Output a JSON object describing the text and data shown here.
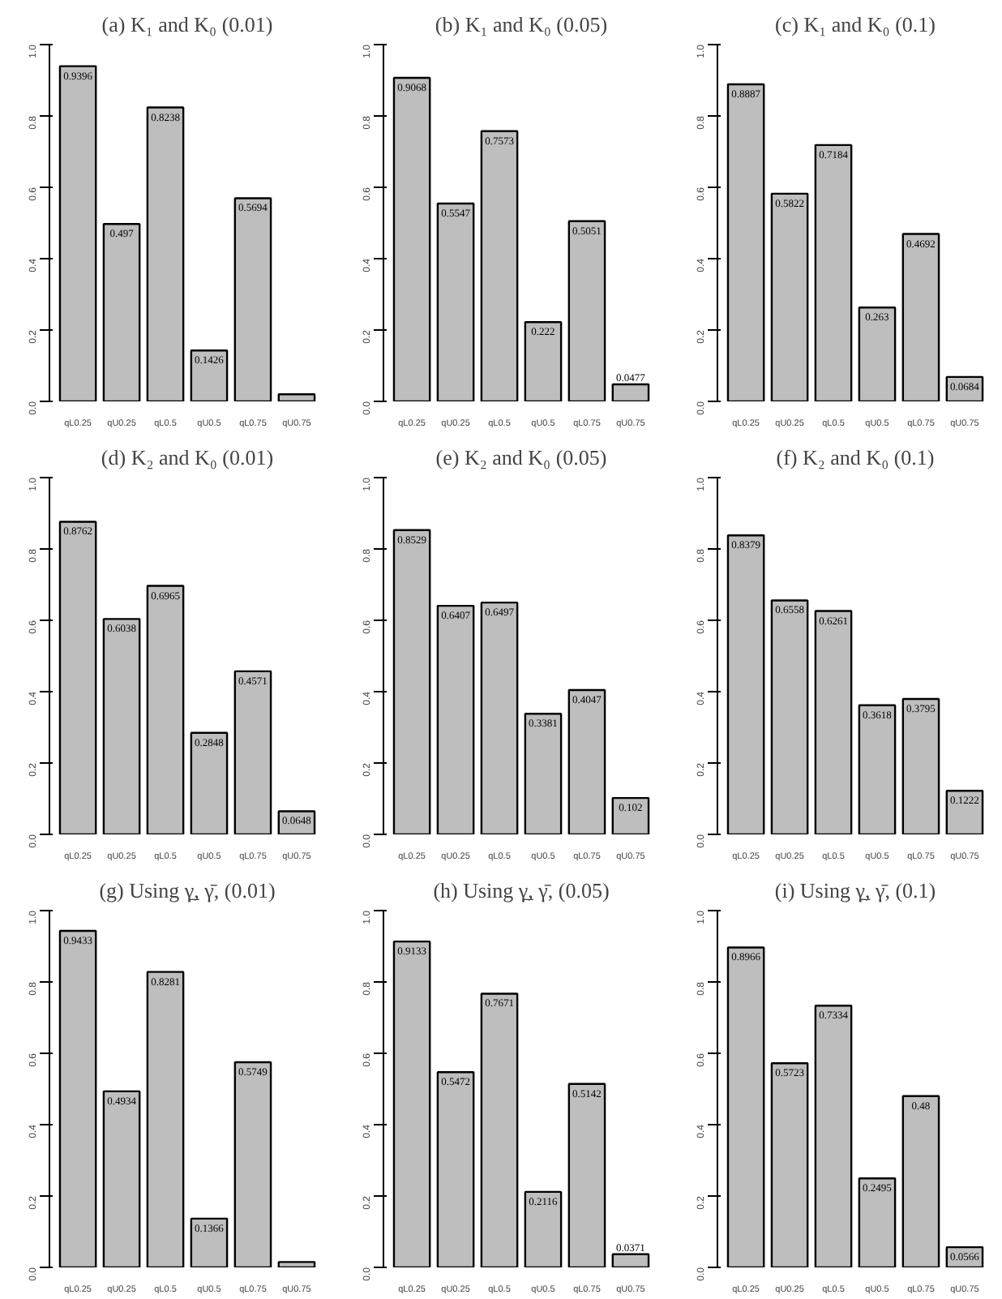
{
  "chart_data": [
    {
      "type": "bar",
      "title": "(a) K₁ and K₀ (0.01)",
      "categories": [
        "qL0.25",
        "qU0.25",
        "qL0.5",
        "qU0.5",
        "qL0.75",
        "qU0.75"
      ],
      "values": [
        0.9396,
        0.497,
        0.8238,
        0.1426,
        0.5694,
        0.02
      ],
      "value_labels": [
        "0.9396",
        "0.497",
        "0.8238",
        "0.1426",
        "0.5694",
        null
      ],
      "color": "#bebebe",
      "ylim": [
        0,
        1
      ],
      "yticks": [
        {
          "value": 0,
          "label": "0.0"
        },
        {
          "value": 0.2,
          "label": "0.2"
        },
        {
          "value": 0.4,
          "label": "0.4"
        },
        {
          "value": 0.6,
          "label": "0.6"
        },
        {
          "value": 0.8,
          "label": "0.8"
        },
        {
          "value": 1,
          "label": "1.0"
        }
      ]
    },
    {
      "type": "bar",
      "title": "(b) K₁ and K₀ (0.05)",
      "categories": [
        "qL0.25",
        "qU0.25",
        "qL0.5",
        "qU0.5",
        "qL0.75",
        "qU0.75"
      ],
      "values": [
        0.9068,
        0.5547,
        0.7573,
        0.222,
        0.5051,
        0.0477
      ],
      "value_labels": [
        "0.9068",
        "0.5547",
        "0.7573",
        "0.222",
        "0.5051",
        "0.0477"
      ],
      "color": "#bebebe",
      "ylim": [
        0,
        1
      ],
      "yticks": [
        {
          "value": 0,
          "label": "0.0"
        },
        {
          "value": 0.2,
          "label": "0.2"
        },
        {
          "value": 0.4,
          "label": "0.4"
        },
        {
          "value": 0.6,
          "label": "0.6"
        },
        {
          "value": 0.8,
          "label": "0.8"
        },
        {
          "value": 1,
          "label": "1.0"
        }
      ]
    },
    {
      "type": "bar",
      "title": "(c) K₁ and K₀ (0.1)",
      "categories": [
        "qL0.25",
        "qU0.25",
        "qL0.5",
        "qU0.5",
        "qL0.75",
        "qU0.75"
      ],
      "values": [
        0.8887,
        0.5822,
        0.7184,
        0.263,
        0.4692,
        0.0684
      ],
      "value_labels": [
        "0.8887",
        "0.5822",
        "0.7184",
        "0.263",
        "0.4692",
        "0.0684"
      ],
      "color": "#bebebe",
      "ylim": [
        0,
        1
      ],
      "yticks": [
        {
          "value": 0,
          "label": "0.0"
        },
        {
          "value": 0.2,
          "label": "0.2"
        },
        {
          "value": 0.4,
          "label": "0.4"
        },
        {
          "value": 0.6,
          "label": "0.6"
        },
        {
          "value": 0.8,
          "label": "0.8"
        },
        {
          "value": 1,
          "label": "1.0"
        }
      ]
    },
    {
      "type": "bar",
      "title": "(d) K₂ and K₀ (0.01)",
      "categories": [
        "qL0.25",
        "qU0.25",
        "qL0.5",
        "qU0.5",
        "qL0.75",
        "qU0.75"
      ],
      "values": [
        0.8762,
        0.6038,
        0.6965,
        0.2848,
        0.4571,
        0.0648
      ],
      "value_labels": [
        "0.8762",
        "0.6038",
        "0.6965",
        "0.2848",
        "0.4571",
        "0.0648"
      ],
      "color": "#bebebe",
      "ylim": [
        0,
        1
      ],
      "yticks": [
        {
          "value": 0,
          "label": "0.0"
        },
        {
          "value": 0.2,
          "label": "0.2"
        },
        {
          "value": 0.4,
          "label": "0.4"
        },
        {
          "value": 0.6,
          "label": "0.6"
        },
        {
          "value": 0.8,
          "label": "0.8"
        },
        {
          "value": 1,
          "label": "1.0"
        }
      ]
    },
    {
      "type": "bar",
      "title": "(e) K₂ and K₀ (0.05)",
      "categories": [
        "qL0.25",
        "qU0.25",
        "qL0.5",
        "qU0.5",
        "qL0.75",
        "qU0.75"
      ],
      "values": [
        0.8529,
        0.6407,
        0.6497,
        0.3381,
        0.4047,
        0.102
      ],
      "value_labels": [
        "0.8529",
        "0.6407",
        "0.6497",
        "0.3381",
        "0.4047",
        "0.102"
      ],
      "color": "#bebebe",
      "ylim": [
        0,
        1
      ],
      "yticks": [
        {
          "value": 0,
          "label": "0.0"
        },
        {
          "value": 0.2,
          "label": "0.2"
        },
        {
          "value": 0.4,
          "label": "0.4"
        },
        {
          "value": 0.6,
          "label": "0.6"
        },
        {
          "value": 0.8,
          "label": "0.8"
        },
        {
          "value": 1,
          "label": "1.0"
        }
      ]
    },
    {
      "type": "bar",
      "title": "(f) K₂ and K₀ (0.1)",
      "categories": [
        "qL0.25",
        "qU0.25",
        "qL0.5",
        "qU0.5",
        "qL0.75",
        "qU0.75"
      ],
      "values": [
        0.8379,
        0.6558,
        0.6261,
        0.3618,
        0.3795,
        0.1222
      ],
      "value_labels": [
        "0.8379",
        "0.6558",
        "0.6261",
        "0.3618",
        "0.3795",
        "0.1222"
      ],
      "color": "#bebebe",
      "ylim": [
        0,
        1
      ],
      "yticks": [
        {
          "value": 0,
          "label": "0.0"
        },
        {
          "value": 0.2,
          "label": "0.2"
        },
        {
          "value": 0.4,
          "label": "0.4"
        },
        {
          "value": 0.6,
          "label": "0.6"
        },
        {
          "value": 0.8,
          "label": "0.8"
        },
        {
          "value": 1,
          "label": "1.0"
        }
      ]
    },
    {
      "type": "bar",
      "title": "(g) Using γ̲, γ̄, (0.01)",
      "categories": [
        "qL0.25",
        "qU0.25",
        "qL0.5",
        "qU0.5",
        "qL0.75",
        "qU0.75"
      ],
      "values": [
        0.9433,
        0.4934,
        0.8281,
        0.1366,
        0.5749,
        0.015
      ],
      "value_labels": [
        "0.9433",
        "0.4934",
        "0.8281",
        "0.1366",
        "0.5749",
        null
      ],
      "color": "#bebebe",
      "ylim": [
        0,
        1
      ],
      "yticks": [
        {
          "value": 0,
          "label": "0.0"
        },
        {
          "value": 0.2,
          "label": "0.2"
        },
        {
          "value": 0.4,
          "label": "0.4"
        },
        {
          "value": 0.6,
          "label": "0.6"
        },
        {
          "value": 0.8,
          "label": "0.8"
        },
        {
          "value": 1,
          "label": "1.0"
        }
      ]
    },
    {
      "type": "bar",
      "title": "(h) Using γ̲, γ̄, (0.05)",
      "categories": [
        "qL0.25",
        "qU0.25",
        "qL0.5",
        "qU0.5",
        "qL0.75",
        "qU0.75"
      ],
      "values": [
        0.9133,
        0.5472,
        0.7671,
        0.2116,
        0.5142,
        0.0371
      ],
      "value_labels": [
        "0.9133",
        "0.5472",
        "0.7671",
        "0.2116",
        "0.5142",
        "0.0371"
      ],
      "color": "#bebebe",
      "ylim": [
        0,
        1
      ],
      "yticks": [
        {
          "value": 0,
          "label": "0.0"
        },
        {
          "value": 0.2,
          "label": "0.2"
        },
        {
          "value": 0.4,
          "label": "0.4"
        },
        {
          "value": 0.6,
          "label": "0.6"
        },
        {
          "value": 0.8,
          "label": "0.8"
        },
        {
          "value": 1,
          "label": "1.0"
        }
      ]
    },
    {
      "type": "bar",
      "title": "(i) Using γ̲, γ̄, (0.1)",
      "categories": [
        "qL0.25",
        "qU0.25",
        "qL0.5",
        "qU0.5",
        "qL0.75",
        "qU0.75"
      ],
      "values": [
        0.8966,
        0.5723,
        0.7334,
        0.2495,
        0.48,
        0.0566
      ],
      "value_labels": [
        "0.8966",
        "0.5723",
        "0.7334",
        "0.2495",
        "0.48",
        "0.0566"
      ],
      "color": "#bebebe",
      "ylim": [
        0,
        1
      ],
      "yticks": [
        {
          "value": 0,
          "label": "0.0"
        },
        {
          "value": 0.2,
          "label": "0.2"
        },
        {
          "value": 0.4,
          "label": "0.4"
        },
        {
          "value": 0.6,
          "label": "0.6"
        },
        {
          "value": 0.8,
          "label": "0.8"
        },
        {
          "value": 1,
          "label": "1.0"
        }
      ]
    }
  ]
}
